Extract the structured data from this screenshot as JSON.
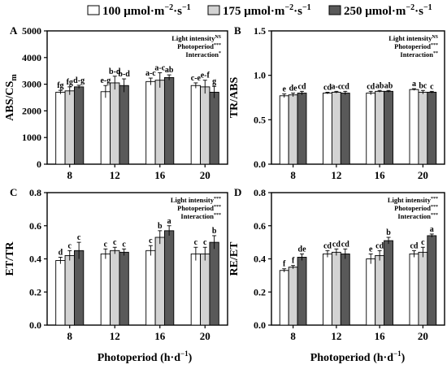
{
  "legend": {
    "items": [
      {
        "label": "100 μmol·m",
        "sup1": "−2",
        "mid": "·s",
        "sup2": "−1",
        "color": "#ffffff"
      },
      {
        "label": "175 μmol·m",
        "sup1": "−2",
        "mid": "·s",
        "sup2": "−1",
        "color": "#d3d3d3"
      },
      {
        "label": "250 μmol·m",
        "sup1": "−2",
        "mid": "·s",
        "sup2": "−1",
        "color": "#595959"
      }
    ]
  },
  "xlabel": "Photoperiod  (h·d",
  "xlabel_sup": "−1",
  "xlabel_close": ")",
  "chart_data": [
    {
      "type": "bar",
      "panel": "A",
      "ylabel": "ABS/CS",
      "ylabel_sub": "m",
      "categories": [
        "8",
        "12",
        "16",
        "20"
      ],
      "ylim": [
        0,
        5000
      ],
      "yticks": [
        "0",
        "1000",
        "2000",
        "3000",
        "4000",
        "5000"
      ],
      "series": [
        {
          "name": "100 μmol·m−2·s−1",
          "values": [
            2700,
            2720,
            3100,
            2950
          ],
          "errors": [
            70,
            230,
            130,
            100
          ],
          "letters": [
            "fg",
            "e-g",
            "a-c",
            "c-e"
          ]
        },
        {
          "name": "175 μmol·m−2·s−1",
          "values": [
            2750,
            3050,
            3150,
            2900
          ],
          "errors": [
            150,
            250,
            280,
            250
          ],
          "letters": [
            "fg",
            "b-d",
            "a-c",
            "e-f"
          ]
        },
        {
          "name": "250 μmol·m−2·s−1",
          "values": [
            2900,
            2950,
            3250,
            2700
          ],
          "errors": [
            60,
            250,
            100,
            220
          ],
          "letters": [
            "d-g",
            "b-d",
            "ab",
            "g"
          ]
        }
      ],
      "stats": [
        {
          "label": "Light intensity",
          "sig": "NS"
        },
        {
          "label": "Photoperiod",
          "sig": "***"
        },
        {
          "label": "Interaction",
          "sig": "*"
        }
      ]
    },
    {
      "type": "bar",
      "panel": "B",
      "ylabel": "TR/ABS",
      "ylabel_sub": "",
      "categories": [
        "8",
        "12",
        "16",
        "20"
      ],
      "ylim": [
        0,
        1.5
      ],
      "yticks": [
        "0.0",
        "0.5",
        "1.0",
        "1.5"
      ],
      "series": [
        {
          "name": "100 μmol·m−2·s−1",
          "values": [
            0.77,
            0.8,
            0.8,
            0.84
          ],
          "errors": [
            0.02,
            0.01,
            0.02,
            0.01
          ],
          "letters": [
            "e",
            "cd",
            "cd",
            "a"
          ]
        },
        {
          "name": "175 μmol·m−2·s−1",
          "values": [
            0.78,
            0.81,
            0.82,
            0.81
          ],
          "errors": [
            0.02,
            0.01,
            0.01,
            0.02
          ],
          "letters": [
            "de",
            "a-c",
            "ab",
            "bc"
          ]
        },
        {
          "name": "250 μmol·m−2·s−1",
          "values": [
            0.8,
            0.8,
            0.82,
            0.81
          ],
          "errors": [
            0.02,
            0.02,
            0.01,
            0.01
          ],
          "letters": [
            "cd",
            "cd",
            "ab",
            "c"
          ]
        }
      ],
      "stats": [
        {
          "label": "Light intensity",
          "sig": "NS"
        },
        {
          "label": "Photoperiod",
          "sig": "***"
        },
        {
          "label": "Interaction",
          "sig": "**"
        }
      ]
    },
    {
      "type": "bar",
      "panel": "C",
      "ylabel": "ET/TR",
      "ylabel_sub": "",
      "categories": [
        "8",
        "12",
        "16",
        "20"
      ],
      "ylim": [
        0.0,
        0.8
      ],
      "yticks": [
        "0.0",
        "0.2",
        "0.4",
        "0.6",
        "0.8"
      ],
      "series": [
        {
          "name": "100 μmol·m−2·s−1",
          "values": [
            0.39,
            0.43,
            0.45,
            0.43
          ],
          "errors": [
            0.02,
            0.03,
            0.03,
            0.04
          ],
          "letters": [
            "d",
            "c",
            "c",
            "c"
          ]
        },
        {
          "name": "175 μmol·m−2·s−1",
          "values": [
            0.42,
            0.45,
            0.53,
            0.43
          ],
          "errors": [
            0.03,
            0.02,
            0.04,
            0.04
          ],
          "letters": [
            "c",
            "c",
            "b",
            "c"
          ]
        },
        {
          "name": "250 μmol·m−2·s−1",
          "values": [
            0.45,
            0.44,
            0.57,
            0.5
          ],
          "errors": [
            0.05,
            0.02,
            0.03,
            0.04
          ],
          "letters": [
            "c",
            "c",
            "a",
            "b"
          ]
        }
      ],
      "stats": [
        {
          "label": "Light intensity",
          "sig": "***"
        },
        {
          "label": "Photoperiod",
          "sig": "***"
        },
        {
          "label": "Interaction",
          "sig": "***"
        }
      ]
    },
    {
      "type": "bar",
      "panel": "D",
      "ylabel": "RE/ET",
      "ylabel_sub": "",
      "categories": [
        "8",
        "12",
        "16",
        "20"
      ],
      "ylim": [
        0.0,
        0.8
      ],
      "yticks": [
        "0.0",
        "0.2",
        "0.4",
        "0.6",
        "0.8"
      ],
      "series": [
        {
          "name": "100 μmol·m−2·s−1",
          "values": [
            0.33,
            0.43,
            0.4,
            0.43
          ],
          "errors": [
            0.01,
            0.02,
            0.03,
            0.02
          ],
          "letters": [
            "f",
            "cd",
            "e",
            "cd"
          ]
        },
        {
          "name": "175 μmol·m−2·s−1",
          "values": [
            0.35,
            0.44,
            0.42,
            0.44
          ],
          "errors": [
            0.01,
            0.02,
            0.03,
            0.03
          ],
          "letters": [
            "f",
            "cd",
            "cd",
            "c"
          ]
        },
        {
          "name": "250 μmol·m−2·s−1",
          "values": [
            0.41,
            0.43,
            0.51,
            0.54
          ],
          "errors": [
            0.02,
            0.03,
            0.02,
            0.01
          ],
          "letters": [
            "de",
            "cd",
            "b",
            "a"
          ]
        }
      ],
      "stats": [
        {
          "label": "Light intensity",
          "sig": "***"
        },
        {
          "label": "Photoperiod",
          "sig": "***"
        },
        {
          "label": "Interaction",
          "sig": "***"
        }
      ]
    }
  ]
}
